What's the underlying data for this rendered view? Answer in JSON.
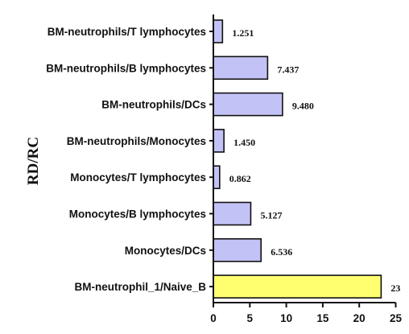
{
  "chart_data": {
    "type": "bar",
    "orientation": "horizontal",
    "categories": [
      "BM-neutrophils/T lymphocytes",
      "BM-neutrophils/B lymphocytes",
      "BM-neutrophils/DCs",
      "BM-neutrophils/Monocytes",
      "Monocytes/T lymphocytes",
      "Monocytes/B lymphocytes",
      "Monocytes/DCs",
      "BM-neutrophil_1/Naive_B"
    ],
    "values": [
      1.251,
      7.437,
      9.48,
      1.45,
      0.862,
      5.127,
      6.536,
      23
    ],
    "value_labels": [
      "1.251",
      "7.437",
      "9.480",
      "1.450",
      "0.862",
      "5.127",
      "6.536",
      "23"
    ],
    "bar_colors": [
      "#c2c2f6",
      "#c2c2f6",
      "#c2c2f6",
      "#c2c2f6",
      "#c2c2f6",
      "#c2c2f6",
      "#c2c2f6",
      "#ffff70"
    ],
    "bar_stroke": "#111111",
    "ylabel": "RD/RC",
    "xlabel": "",
    "xlim": [
      0,
      25
    ],
    "xticks": [
      0,
      5,
      10,
      15,
      20,
      25
    ],
    "grid": false,
    "legend": "none"
  }
}
